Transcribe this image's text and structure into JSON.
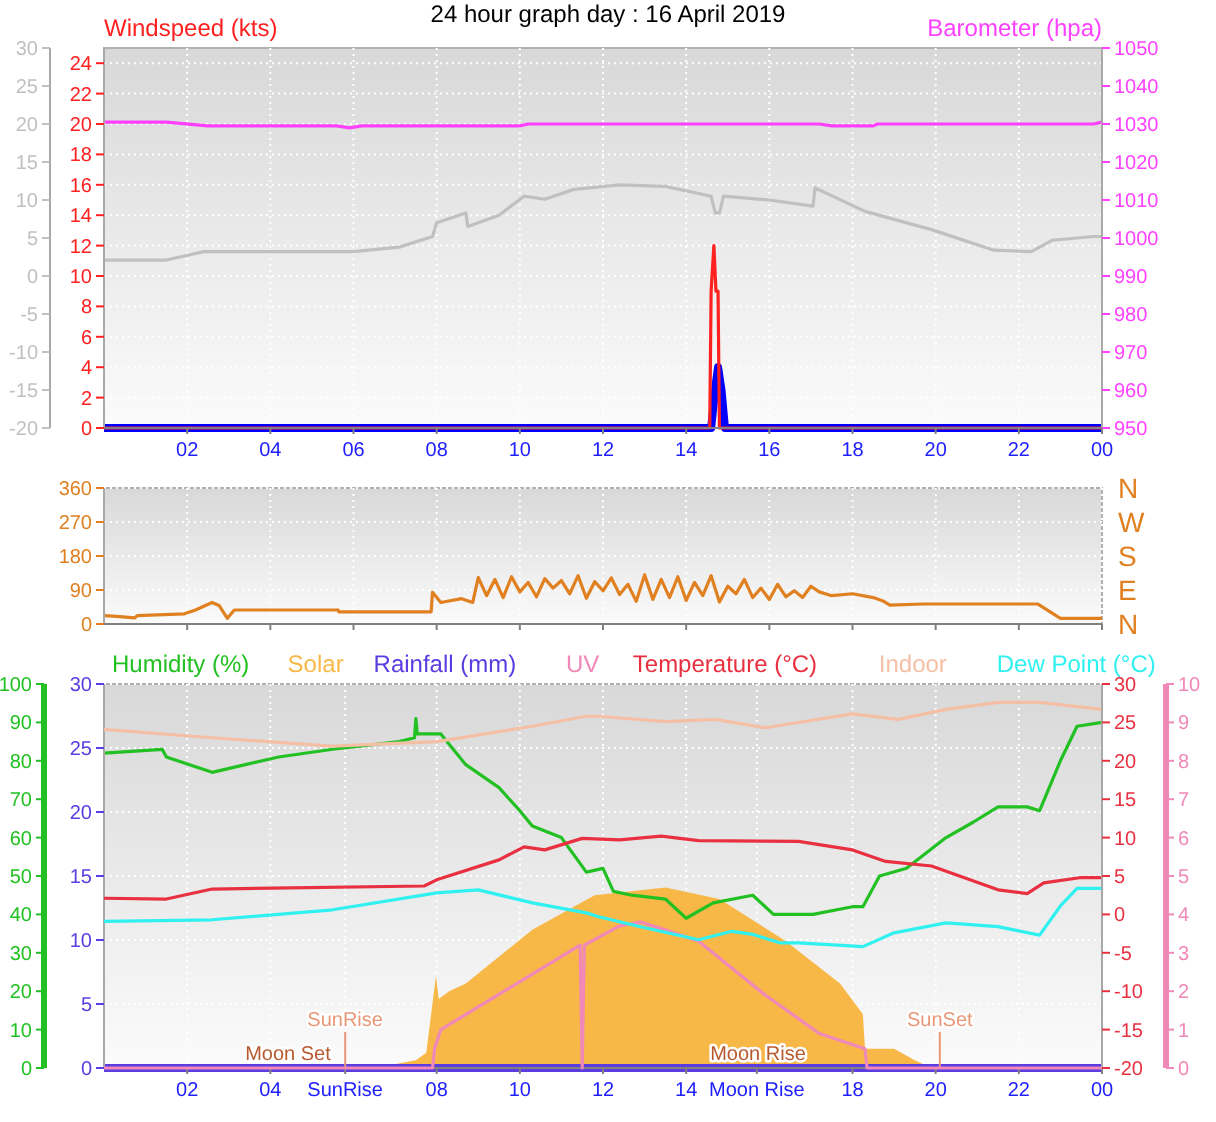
{
  "chart_data": [
    {
      "type": "line",
      "title": "24 hour graph day : 16 April 2019",
      "ylabel": "Windspeed (kts)",
      "y2label": "Barometer (hpa)",
      "xlim": [
        "2019-04-16T00:00",
        "2019-04-17T00:00"
      ],
      "xticks": [
        {
          "value": "2019-04-16T02:00",
          "label": "02"
        },
        {
          "value": "2019-04-16T04:00",
          "label": "04"
        },
        {
          "value": "2019-04-16T06:00",
          "label": "06"
        },
        {
          "value": "2019-04-16T08:00",
          "label": "08"
        },
        {
          "value": "2019-04-16T10:00",
          "label": "10"
        },
        {
          "value": "2019-04-16T12:00",
          "label": "12"
        },
        {
          "value": "2019-04-16T14:00",
          "label": "14"
        },
        {
          "value": "2019-04-16T16:00",
          "label": "16"
        },
        {
          "value": "2019-04-16T18:00",
          "label": "18"
        },
        {
          "value": "2019-04-16T20:00",
          "label": "20"
        },
        {
          "value": "2019-04-16T22:00",
          "label": "22"
        },
        {
          "value": "2019-04-17T00:00",
          "label": "00"
        }
      ],
      "ylim": [
        0,
        25
      ],
      "yticks": [
        0,
        2,
        4,
        6,
        8,
        10,
        12,
        14,
        16,
        18,
        20,
        22,
        24
      ],
      "y2lim": [
        950,
        1050
      ],
      "y2ticks": [
        950,
        960,
        970,
        980,
        990,
        1000,
        1010,
        1020,
        1030,
        1040,
        1050
      ],
      "y3lim": [
        -20,
        30
      ],
      "y3ticks": [
        -20,
        -15,
        -10,
        -5,
        0,
        5,
        10,
        15,
        20,
        25,
        30
      ],
      "grid": true,
      "series": [
        {
          "color": "#c0c0c0",
          "axis": "y3",
          "x": [
            "2019-04-16T00:00",
            "2019-04-16T01:30",
            "2019-04-16T02:24",
            "2019-04-16T06:00",
            "2019-04-16T07:06",
            "2019-04-16T07:54",
            "2019-04-16T08:00",
            "2019-04-16T08:42",
            "2019-04-16T08:45",
            "2019-04-16T09:30",
            "2019-04-16T10:06",
            "2019-04-16T10:36",
            "2019-04-16T11:18",
            "2019-04-16T12:24",
            "2019-04-16T13:30",
            "2019-04-16T14:36",
            "2019-04-16T14:42",
            "2019-04-16T14:48",
            "2019-04-16T14:54",
            "2019-04-16T16:00",
            "2019-04-16T17:03",
            "2019-04-16T17:06",
            "2019-04-16T18:18",
            "2019-04-16T19:54",
            "2019-04-16T21:24",
            "2019-04-16T22:18",
            "2019-04-16T22:48",
            "2019-04-16T23:48",
            "2019-04-17T00:00"
          ],
          "values": [
            2.1,
            2.1,
            3.2,
            3.2,
            3.8,
            5.2,
            7,
            8.3,
            6.5,
            8,
            10.5,
            10.1,
            11.4,
            12,
            11.8,
            10.5,
            8.3,
            8.3,
            10.5,
            10,
            9.2,
            11.6,
            8.5,
            6.1,
            3.4,
            3.2,
            4.7,
            5.2,
            5.2
          ]
        },
        {
          "color": "#ff40ff",
          "axis": "y2",
          "x": [
            "2019-04-16T00:00",
            "2019-04-16T01:30",
            "2019-04-16T02:30",
            "2019-04-16T05:36",
            "2019-04-16T05:54",
            "2019-04-16T06:12",
            "2019-04-16T10:00",
            "2019-04-16T10:12",
            "2019-04-16T17:12",
            "2019-04-16T17:30",
            "2019-04-16T18:30",
            "2019-04-16T18:36",
            "2019-04-16T23:48",
            "2019-04-17T00:00"
          ],
          "values": [
            1030.5,
            1030.5,
            1029.5,
            1029.5,
            1029,
            1029.5,
            1029.5,
            1030,
            1030,
            1029.5,
            1029.5,
            1030,
            1030,
            1030.5
          ]
        },
        {
          "color": "#ff2020",
          "x": [
            "2019-04-16T00:00",
            "2019-04-16T14:34",
            "2019-04-16T14:36",
            "2019-04-16T14:40",
            "2019-04-16T14:43",
            "2019-04-16T14:46",
            "2019-04-16T14:48",
            "2019-04-17T00:00"
          ],
          "values": [
            0,
            0,
            9,
            12,
            9,
            9,
            0,
            0
          ]
        },
        {
          "color": "#0000ff",
          "x": [
            "2019-04-16T00:00",
            "2019-04-16T14:36",
            "2019-04-16T14:43",
            "2019-04-16T14:46",
            "2019-04-16T14:51",
            "2019-04-16T14:56",
            "2019-04-17T00:00"
          ],
          "values": [
            0,
            0,
            3,
            4,
            2.5,
            0,
            0
          ]
        }
      ]
    },
    {
      "type": "line",
      "xlim": [
        "2019-04-16T00:00",
        "2019-04-17T00:00"
      ],
      "xticks": [
        {
          "value": "2019-04-16T02:00",
          "label": null
        },
        {
          "value": "2019-04-16T04:00",
          "label": null
        },
        {
          "value": "2019-04-16T06:00",
          "label": null
        },
        {
          "value": "2019-04-16T08:00",
          "label": null
        },
        {
          "value": "2019-04-16T10:00",
          "label": null
        },
        {
          "value": "2019-04-16T12:00",
          "label": null
        },
        {
          "value": "2019-04-16T14:00",
          "label": null
        },
        {
          "value": "2019-04-16T16:00",
          "label": null
        },
        {
          "value": "2019-04-16T18:00",
          "label": null
        },
        {
          "value": "2019-04-16T20:00",
          "label": null
        },
        {
          "value": "2019-04-16T22:00",
          "label": null
        },
        {
          "value": "2019-04-17T00:00",
          "label": null
        }
      ],
      "ylim": [
        0,
        360
      ],
      "yticks": [
        0,
        90,
        180,
        270,
        360
      ],
      "tick_labels": "y",
      "grid": true,
      "annotations": [
        "N",
        "W",
        "S",
        "E",
        "N"
      ],
      "series": [
        {
          "color": "#e08020",
          "x": [
            "2019-04-16T00:00",
            "2019-04-16T00:18",
            "2019-04-16T00:44",
            "2019-04-16T00:48",
            "2019-04-16T01:56",
            "2019-04-16T02:12",
            "2019-04-16T02:36",
            "2019-04-16T02:46",
            "2019-04-16T02:58",
            "2019-04-16T03:08",
            "2019-04-16T05:38",
            "2019-04-16T05:39",
            "2019-04-16T07:52",
            "2019-04-16T07:54",
            "2019-04-16T08:06",
            "2019-04-16T08:36",
            "2019-04-16T08:52",
            "2019-04-16T09:00",
            "2019-04-16T09:12",
            "2019-04-16T09:24",
            "2019-04-16T09:36",
            "2019-04-16T09:48",
            "2019-04-16T10:00",
            "2019-04-16T10:12",
            "2019-04-16T10:24",
            "2019-04-16T10:36",
            "2019-04-16T10:48",
            "2019-04-16T11:00",
            "2019-04-16T11:12",
            "2019-04-16T11:24",
            "2019-04-16T11:36",
            "2019-04-16T11:48",
            "2019-04-16T12:00",
            "2019-04-16T12:12",
            "2019-04-16T12:24",
            "2019-04-16T12:36",
            "2019-04-16T12:48",
            "2019-04-16T13:00",
            "2019-04-16T13:12",
            "2019-04-16T13:24",
            "2019-04-16T13:36",
            "2019-04-16T13:48",
            "2019-04-16T14:00",
            "2019-04-16T14:12",
            "2019-04-16T14:24",
            "2019-04-16T14:36",
            "2019-04-16T14:48",
            "2019-04-16T15:00",
            "2019-04-16T15:12",
            "2019-04-16T15:24",
            "2019-04-16T15:36",
            "2019-04-16T15:48",
            "2019-04-16T16:00",
            "2019-04-16T16:12",
            "2019-04-16T16:24",
            "2019-04-16T16:36",
            "2019-04-16T16:48",
            "2019-04-16T17:00",
            "2019-04-16T17:12",
            "2019-04-16T17:30",
            "2019-04-16T18:00",
            "2019-04-16T18:30",
            "2019-04-16T18:45",
            "2019-04-16T18:54",
            "2019-04-16T19:42",
            "2019-04-16T22:27",
            "2019-04-16T23:00",
            "2019-04-17T00:00"
          ],
          "values": [
            22,
            20,
            16,
            22,
            27,
            37,
            57,
            49,
            15,
            37,
            37,
            32,
            32,
            84,
            57,
            67,
            57,
            123,
            75,
            118,
            70,
            125,
            85,
            110,
            72,
            120,
            95,
            115,
            80,
            128,
            68,
            112,
            88,
            122,
            78,
            105,
            60,
            130,
            65,
            118,
            70,
            125,
            62,
            110,
            75,
            128,
            58,
            100,
            80,
            118,
            70,
            95,
            65,
            105,
            72,
            88,
            70,
            100,
            85,
            75,
            80,
            70,
            60,
            50,
            53,
            53,
            15,
            15
          ]
        }
      ]
    },
    {
      "type": "line",
      "legend": "top",
      "xlim": [
        "2019-04-16T00:00",
        "2019-04-17T00:00"
      ],
      "xticks": [
        {
          "value": "2019-04-16T02:00",
          "label": "02"
        },
        {
          "value": "2019-04-16T04:00",
          "label": "04"
        },
        {
          "value": "2019-04-16T05:48",
          "label": "SunRise"
        },
        {
          "value": "2019-04-16T08:00",
          "label": "08"
        },
        {
          "value": "2019-04-16T10:00",
          "label": "10"
        },
        {
          "value": "2019-04-16T12:00",
          "label": "12"
        },
        {
          "value": "2019-04-16T14:00",
          "label": "14"
        },
        {
          "value": "2019-04-16T15:42",
          "label": "Moon Rise"
        },
        {
          "value": "2019-04-16T18:00",
          "label": "18"
        },
        {
          "value": "2019-04-16T20:00",
          "label": "20"
        },
        {
          "value": "2019-04-16T22:00",
          "label": "22"
        },
        {
          "value": "2019-04-17T00:00",
          "label": "00"
        }
      ],
      "ylim": [
        0,
        100
      ],
      "yticks": [
        0,
        10,
        20,
        30,
        40,
        50,
        60,
        70,
        80,
        90,
        100
      ],
      "y2lim": [
        0,
        30
      ],
      "y2ticks": [
        0,
        5,
        10,
        15,
        20,
        25,
        30
      ],
      "grid": true,
      "ref_lines": [
        {
          "axis": "x",
          "value": "2019-04-16T05:48",
          "label": "SunRise",
          "color": "#e89878"
        },
        {
          "axis": "x",
          "value": "2019-04-16T20:06",
          "label": "SunSet",
          "color": "#e89878"
        }
      ],
      "annotations": [
        "Moon Set",
        "Moon Rise"
      ],
      "series": [
        {
          "name": "Humidity (%)",
          "color": "#22c022",
          "x": [
            "2019-04-16T00:00",
            "2019-04-16T01:24",
            "2019-04-16T01:30",
            "2019-04-16T02:36",
            "2019-04-16T03:24",
            "2019-04-16T04:12",
            "2019-04-16T05:30",
            "2019-04-16T07:06",
            "2019-04-16T07:28",
            "2019-04-16T07:30",
            "2019-04-16T07:32",
            "2019-04-16T08:06",
            "2019-04-16T08:42",
            "2019-04-16T09:30",
            "2019-04-16T10:00",
            "2019-04-16T10:18",
            "2019-04-16T11:00",
            "2019-04-16T11:36",
            "2019-04-16T12:00",
            "2019-04-16T12:15",
            "2019-04-16T12:42",
            "2019-04-16T13:30",
            "2019-04-16T14:00",
            "2019-04-16T14:39",
            "2019-04-16T15:36",
            "2019-04-16T16:06",
            "2019-04-16T17:03",
            "2019-04-16T18:00",
            "2019-04-16T18:15",
            "2019-04-16T18:39",
            "2019-04-16T19:18",
            "2019-04-16T20:15",
            "2019-04-16T20:54",
            "2019-04-16T21:30",
            "2019-04-16T22:12",
            "2019-04-16T22:30",
            "2019-04-16T23:00",
            "2019-04-16T23:24",
            "2019-04-17T00:00"
          ],
          "values": [
            82,
            83,
            81,
            77,
            79,
            81,
            83,
            85,
            86,
            91,
            87,
            87,
            79,
            73,
            67,
            63,
            60,
            51,
            52,
            46,
            45,
            44,
            39,
            43,
            45,
            40,
            40,
            42,
            42,
            50,
            52,
            60,
            64,
            68,
            68,
            67,
            80,
            89,
            90
          ]
        },
        {
          "name": "Solar",
          "type": "area",
          "color": "#f8b848",
          "x": [
            "2019-04-16T00:00",
            "2019-04-16T06:30",
            "2019-04-16T07:30",
            "2019-04-16T07:45",
            "2019-04-16T07:59",
            "2019-04-16T08:03",
            "2019-04-16T08:18",
            "2019-04-16T08:42",
            "2019-04-16T10:18",
            "2019-04-16T11:48",
            "2019-04-16T13:30",
            "2019-04-16T14:48",
            "2019-04-16T16:24",
            "2019-04-16T17:42",
            "2019-04-16T18:15",
            "2019-04-16T18:18",
            "2019-04-16T19:00",
            "2019-04-16T19:30",
            "2019-04-16T19:54",
            "2019-04-17T00:00"
          ],
          "values": [
            0,
            0,
            2,
            4,
            24,
            18,
            20,
            22,
            36,
            45,
            47,
            44,
            33,
            22,
            14,
            5,
            5,
            2,
            0,
            0
          ]
        },
        {
          "name": "Rainfall (mm)",
          "color": "#5a3ce0",
          "axis": "y2",
          "x": [
            "2019-04-16T00:00",
            "2019-04-16T02:00",
            "2019-04-16T04:00",
            "2019-04-16T06:00",
            "2019-04-16T08:00",
            "2019-04-16T10:00",
            "2019-04-16T12:00",
            "2019-04-16T14:00",
            "2019-04-16T16:00",
            "2019-04-16T18:00",
            "2019-04-16T20:00",
            "2019-04-16T22:00",
            "2019-04-17T00:00"
          ],
          "values": [
            0,
            0,
            0,
            0,
            0,
            0,
            0,
            0,
            0,
            0,
            0,
            0,
            0
          ]
        }
      ]
    },
    {
      "type": "line",
      "legend": "top",
      "tick_labels": "y",
      "xlim": [
        "2019-04-16T00:00",
        "2019-04-17T00:00"
      ],
      "ylim": [
        -20,
        30
      ],
      "yticks": [
        -20,
        -15,
        -10,
        -5,
        0,
        5,
        10,
        15,
        20,
        25,
        30
      ],
      "y2lim": [
        0,
        10
      ],
      "y2ticks": [
        0,
        1,
        2,
        3,
        4,
        5,
        6,
        7,
        8,
        9,
        10
      ],
      "series": [
        {
          "name": "UV",
          "color": "#f088b8",
          "axis": "y2",
          "x": [
            "2019-04-16T00:00",
            "2019-04-16T07:54",
            "2019-04-16T07:57",
            "2019-04-16T08:06",
            "2019-04-16T11:27",
            "2019-04-16T11:30",
            "2019-04-16T11:33",
            "2019-04-16T12:24",
            "2019-04-16T12:54",
            "2019-04-16T13:30",
            "2019-04-16T14:18",
            "2019-04-16T15:54",
            "2019-04-16T17:12",
            "2019-04-16T18:18",
            "2019-04-16T18:21",
            "2019-04-17T00:00"
          ],
          "values": [
            0,
            0,
            0.5,
            1,
            3.2,
            0,
            3.2,
            3.7,
            3.8,
            3.6,
            3.3,
            1.9,
            0.9,
            0.5,
            0,
            0
          ]
        },
        {
          "name": "Temperature (°C)",
          "color": "#e83040",
          "x": [
            "2019-04-16T00:00",
            "2019-04-16T01:30",
            "2019-04-16T02:36",
            "2019-04-16T07:42",
            "2019-04-16T08:00",
            "2019-04-16T09:30",
            "2019-04-16T10:06",
            "2019-04-16T10:36",
            "2019-04-16T11:30",
            "2019-04-16T12:24",
            "2019-04-16T13:24",
            "2019-04-16T14:18",
            "2019-04-16T16:42",
            "2019-04-16T18:00",
            "2019-04-16T18:48",
            "2019-04-16T19:54",
            "2019-04-16T21:30",
            "2019-04-16T22:12",
            "2019-04-16T22:36",
            "2019-04-16T23:30",
            "2019-04-17T00:00"
          ],
          "values": [
            2.1,
            2,
            3.3,
            3.7,
            4.5,
            7.1,
            8.8,
            8.4,
            9.9,
            9.7,
            10.2,
            9.6,
            9.5,
            8.4,
            6.9,
            6.3,
            3.2,
            2.7,
            4.1,
            4.8,
            4.8
          ]
        },
        {
          "name": "Indoor",
          "color": "#f5bfa5",
          "x": [
            "2019-04-16T00:00",
            "2019-04-16T02:36",
            "2019-04-16T05:30",
            "2019-04-16T08:00",
            "2019-04-16T10:18",
            "2019-04-16T11:36",
            "2019-04-16T11:54",
            "2019-04-16T13:30",
            "2019-04-16T14:42",
            "2019-04-16T15:54",
            "2019-04-16T18:00",
            "2019-04-16T19:06",
            "2019-04-16T20:15",
            "2019-04-16T21:30",
            "2019-04-16T22:30",
            "2019-04-17T00:00"
          ],
          "values": [
            24.1,
            23,
            21.9,
            22.5,
            24.5,
            25.8,
            25.8,
            25.1,
            25.4,
            24.3,
            26.1,
            25.4,
            26.7,
            27.6,
            27.6,
            26.7
          ]
        },
        {
          "name": "Dew Point (°C)",
          "color": "#30f0f0",
          "x": [
            "2019-04-16T00:00",
            "2019-04-16T02:36",
            "2019-04-16T05:30",
            "2019-04-16T08:00",
            "2019-04-16T09:00",
            "2019-04-16T10:18",
            "2019-04-16T11:36",
            "2019-04-16T11:54",
            "2019-04-16T12:54",
            "2019-04-16T14:18",
            "2019-04-16T15:06",
            "2019-04-16T15:36",
            "2019-04-16T16:15",
            "2019-04-16T16:42",
            "2019-04-16T18:15",
            "2019-04-16T19:00",
            "2019-04-16T20:15",
            "2019-04-16T21:30",
            "2019-04-16T22:30",
            "2019-04-16T23:00",
            "2019-04-16T23:24",
            "2019-04-17T00:00"
          ],
          "values": [
            -0.9,
            -0.7,
            0.6,
            2.8,
            3.2,
            1.5,
            0.2,
            -0.3,
            -1.6,
            -3.3,
            -2.2,
            -2.6,
            -3.7,
            -3.7,
            -4.2,
            -2.4,
            -1.1,
            -1.6,
            -2.7,
            1.1,
            3.4,
            3.4
          ]
        }
      ]
    }
  ]
}
